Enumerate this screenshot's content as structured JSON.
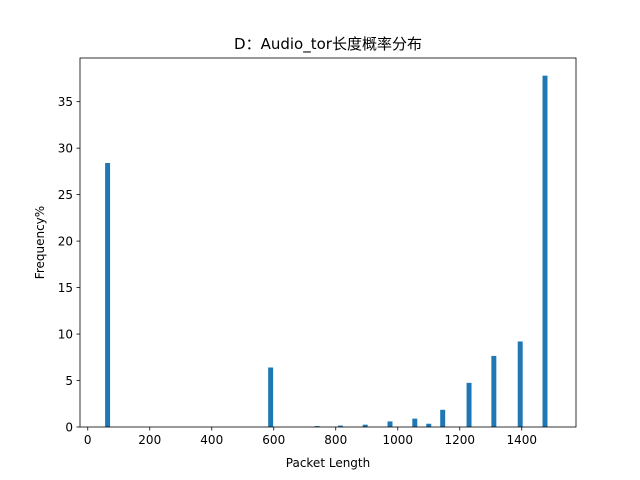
{
  "chart_data": {
    "type": "bar",
    "title": "D：Audio_tor长度概率分布",
    "xlabel": "Packet Length",
    "ylabel": "Frequency%",
    "xlim": [
      -25,
      1575
    ],
    "ylim": [
      0,
      39.7
    ],
    "xticks": [
      0,
      200,
      400,
      600,
      800,
      1000,
      1200,
      1400
    ],
    "yticks": [
      0,
      5,
      10,
      15,
      20,
      25,
      30,
      35
    ],
    "bar_width": 16,
    "bar_color": "#1f77b4",
    "grid": false,
    "series": [
      {
        "x": [
          64,
          590,
          740,
          815,
          895,
          975,
          1055,
          1100,
          1145,
          1230,
          1310,
          1395,
          1475
        ],
        "values": [
          28.4,
          6.4,
          0.1,
          0.15,
          0.25,
          0.6,
          0.9,
          0.35,
          1.85,
          4.75,
          7.65,
          9.2,
          37.8
        ]
      }
    ]
  }
}
